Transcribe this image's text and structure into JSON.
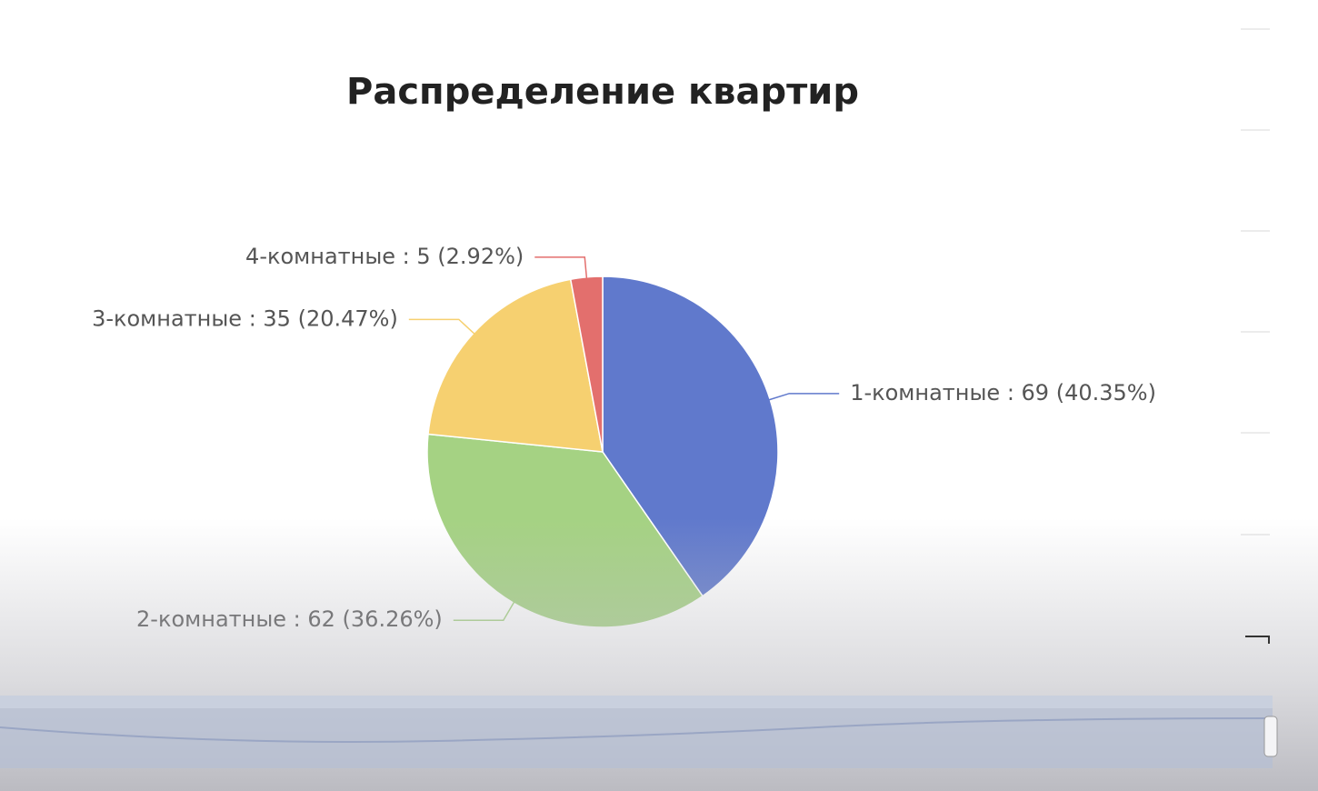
{
  "chart_data": {
    "type": "pie",
    "title": "Распределение квартир",
    "categories": [
      "1-комнатные",
      "2-комнатные",
      "3-комнатные",
      "4-комнатные"
    ],
    "values": [
      69,
      62,
      35,
      5
    ],
    "value_labels": [
      "1-комнатные : 69 (40.35%)",
      "2-комнатные : 62 (36.26%)",
      "3-комнатные : 35 (20.47%)",
      "4-комнатные : 5 (2.92%)"
    ],
    "colors": [
      "#6079cc",
      "#a5d283",
      "#f6d070",
      "#e36f6d"
    ]
  }
}
